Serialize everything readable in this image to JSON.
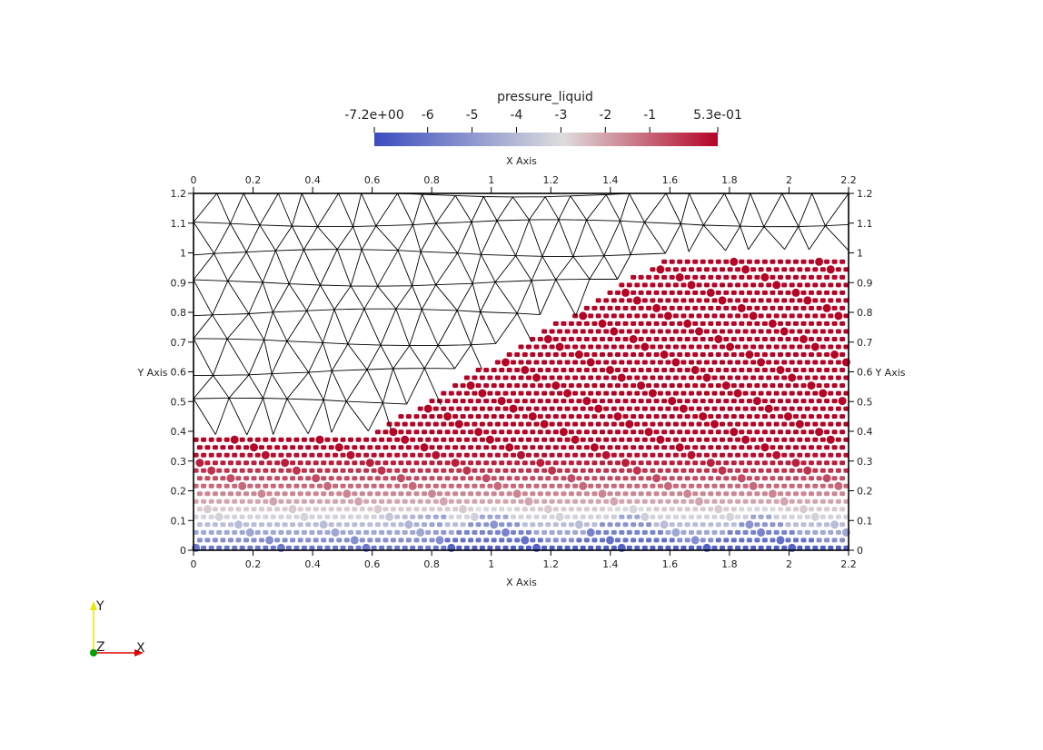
{
  "colorbar": {
    "title": "pressure_liquid",
    "min_label": "-7.2e+00",
    "max_label": "5.3e-01",
    "ticks": [
      {
        "value": -6,
        "label": "-6"
      },
      {
        "value": -5,
        "label": "-5"
      },
      {
        "value": -4,
        "label": "-4"
      },
      {
        "value": -3,
        "label": "-3"
      },
      {
        "value": -2,
        "label": "-2"
      },
      {
        "value": -1,
        "label": "-1"
      }
    ],
    "range": [
      -7.2,
      0.53
    ],
    "colors": [
      "#3b4cc0",
      "#dddddd",
      "#b40426"
    ]
  },
  "plot": {
    "x_axis_title": "X Axis",
    "y_axis_title": "Y Axis",
    "x_range": [
      0,
      2.2
    ],
    "y_range": [
      0,
      1.2
    ],
    "x_ticks": [
      {
        "value": 0,
        "label": "0"
      },
      {
        "value": 0.2,
        "label": "0.2"
      },
      {
        "value": 0.4,
        "label": "0.4"
      },
      {
        "value": 0.6,
        "label": "0.6"
      },
      {
        "value": 0.8,
        "label": "0.8"
      },
      {
        "value": 1.0,
        "label": "1"
      },
      {
        "value": 1.2,
        "label": "1.2"
      },
      {
        "value": 1.4,
        "label": "1.4"
      },
      {
        "value": 1.6,
        "label": "1.6"
      },
      {
        "value": 1.8,
        "label": "1.8"
      },
      {
        "value": 2.0,
        "label": "2"
      },
      {
        "value": 2.2,
        "label": "2.2"
      }
    ],
    "y_ticks": [
      {
        "value": 0,
        "label": "0"
      },
      {
        "value": 0.1,
        "label": "0.1"
      },
      {
        "value": 0.2,
        "label": "0.2"
      },
      {
        "value": 0.3,
        "label": "0.3"
      },
      {
        "value": 0.4,
        "label": "0.4"
      },
      {
        "value": 0.5,
        "label": "0.5"
      },
      {
        "value": 0.6,
        "label": "0.6"
      },
      {
        "value": 0.7,
        "label": "0.7"
      },
      {
        "value": 0.8,
        "label": "0.8"
      },
      {
        "value": 0.9,
        "label": "0.9"
      },
      {
        "value": 1.0,
        "label": "1"
      },
      {
        "value": 1.1,
        "label": "1.1"
      },
      {
        "value": 1.2,
        "label": "1.2"
      }
    ],
    "water_surface": [
      [
        0,
        0.4
      ],
      [
        0.6,
        0.4
      ],
      [
        1.6,
        1.0
      ],
      [
        2.2,
        1.0
      ]
    ]
  },
  "orientation": {
    "x_label": "X",
    "y_label": "Y",
    "z_label": "Z",
    "colors": {
      "x": "#e00000",
      "y": "#e8e800",
      "z": "#00a000"
    }
  }
}
